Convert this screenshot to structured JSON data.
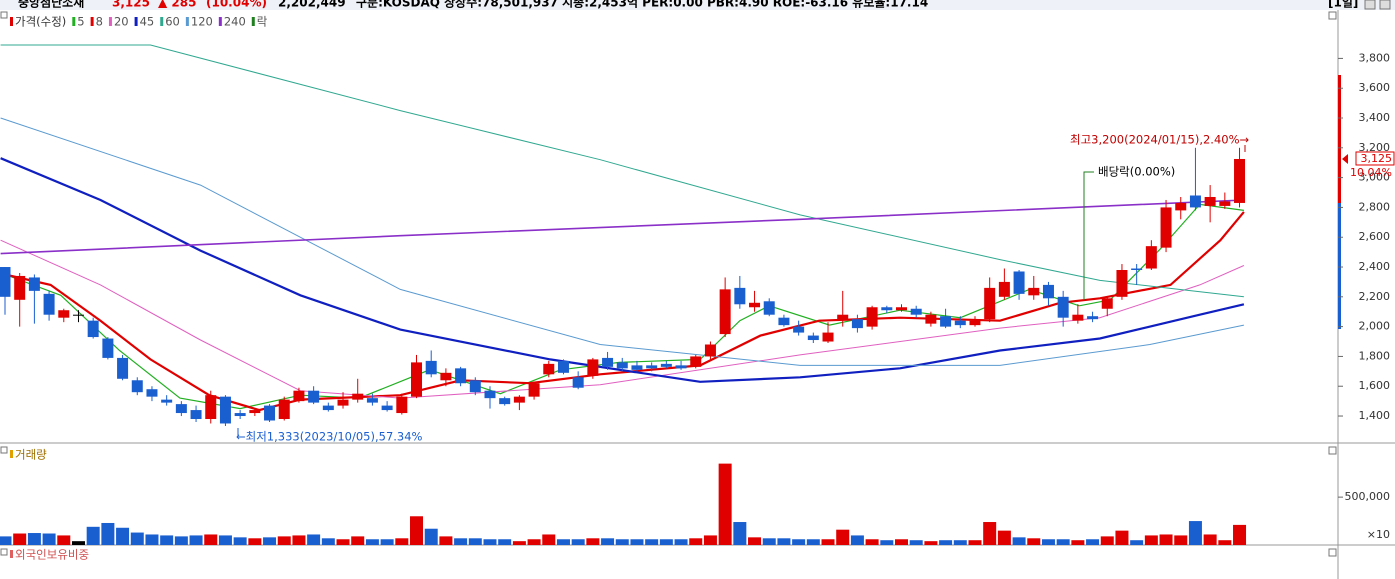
{
  "header": {
    "name": "중앙첨단소재",
    "price": "3,125",
    "change": "▲ 285",
    "rate": "(10.04%)",
    "volume": "2,202,449",
    "info": "구분:KOSDAQ 상장수:78,501,937 시총:2,453억 PER:0.00 PBR:4.90 ROE:-63.16 유보율:17.14",
    "period": "[1일]"
  },
  "legend": [
    {
      "name": "가격(수정)",
      "color": "#e00000"
    },
    {
      "name": "5",
      "color": "#22b022"
    },
    {
      "name": "8",
      "color": "#e00000"
    },
    {
      "name": "20",
      "color": "#e060c0"
    },
    {
      "name": "45",
      "color": "#1020c0"
    },
    {
      "name": "60",
      "color": "#30a890"
    },
    {
      "name": "120",
      "color": "#5a9ad0"
    },
    {
      "name": "240",
      "color": "#8a30c8"
    },
    {
      "name": "락",
      "color": "#208020"
    }
  ],
  "chart_data": [
    {
      "type": "candlestick",
      "up_color": "#e00000",
      "down_color": "#1a5fd0",
      "flat_color": "#000000",
      "xlim": [
        -0.34,
        90.7
      ],
      "ylim": [
        1219,
        4098
      ],
      "yticks": [
        {
          "value": 1400,
          "label": "1,400"
        },
        {
          "value": 1600,
          "label": "1,600"
        },
        {
          "value": 1800,
          "label": "1,800"
        },
        {
          "value": 2000,
          "label": "2,000"
        },
        {
          "value": 2200,
          "label": "2,200"
        },
        {
          "value": 2400,
          "label": "2,400"
        },
        {
          "value": 2600,
          "label": "2,600"
        },
        {
          "value": 2800,
          "label": "2,800"
        },
        {
          "value": 3000,
          "label": "3,000"
        },
        {
          "value": 3200,
          "label": "3,200"
        },
        {
          "value": 3400,
          "label": "3,400"
        },
        {
          "value": 3600,
          "label": "3,600"
        },
        {
          "value": 3800,
          "label": "3,800"
        }
      ],
      "open": [
        2400,
        2180,
        2330,
        2220,
        2060,
        2080,
        2040,
        1920,
        1790,
        1640,
        1580,
        1510,
        1480,
        1440,
        1380,
        1530,
        1420,
        1420,
        1470,
        1380,
        1500,
        1570,
        1470,
        1470,
        1510,
        1520,
        1470,
        1420,
        1530,
        1770,
        1640,
        1720,
        1640,
        1570,
        1520,
        1490,
        1530,
        1680,
        1770,
        1660,
        1670,
        1790,
        1760,
        1740,
        1740,
        1750,
        1740,
        1730,
        1800,
        1950,
        2260,
        2130,
        2170,
        2060,
        2000,
        1940,
        1900,
        2040,
        2050,
        2000,
        2130,
        2110,
        2120,
        2020,
        2070,
        2040,
        2010,
        2050,
        2200,
        2370,
        2210,
        2280,
        2200,
        2040,
        2070,
        2120,
        2200,
        2390,
        2390,
        2530,
        2780,
        2880,
        2810,
        2810,
        2830
      ],
      "high": [
        2400,
        2360,
        2350,
        2240,
        2120,
        2110,
        2060,
        1930,
        1810,
        1660,
        1600,
        1540,
        1500,
        1470,
        1570,
        1540,
        1440,
        1450,
        1480,
        1530,
        1590,
        1600,
        1490,
        1560,
        1650,
        1550,
        1500,
        1550,
        1810,
        1840,
        1720,
        1730,
        1660,
        1600,
        1530,
        1540,
        1630,
        1770,
        1780,
        1700,
        1790,
        1830,
        1790,
        1770,
        1760,
        1770,
        1770,
        1810,
        1900,
        2330,
        2340,
        2240,
        2190,
        2080,
        2040,
        1960,
        2030,
        2240,
        2080,
        2140,
        2140,
        2150,
        2140,
        2100,
        2120,
        2070,
        2070,
        2330,
        2390,
        2380,
        2340,
        2300,
        2240,
        2150,
        2100,
        2200,
        2420,
        2420,
        2580,
        2850,
        2870,
        3200,
        2950,
        2900,
        3200
      ],
      "low": [
        2080,
        2000,
        2020,
        2040,
        2030,
        2030,
        1920,
        1780,
        1640,
        1540,
        1500,
        1470,
        1400,
        1360,
        1350,
        1333,
        1380,
        1400,
        1360,
        1370,
        1490,
        1480,
        1430,
        1450,
        1490,
        1470,
        1430,
        1410,
        1520,
        1660,
        1600,
        1600,
        1540,
        1450,
        1470,
        1440,
        1510,
        1660,
        1680,
        1580,
        1650,
        1710,
        1700,
        1700,
        1700,
        1720,
        1710,
        1720,
        1780,
        1930,
        2120,
        2100,
        2070,
        2000,
        1940,
        1890,
        1890,
        2000,
        1960,
        1980,
        2090,
        2100,
        2060,
        2000,
        1990,
        1990,
        2000,
        2030,
        2180,
        2180,
        2180,
        2140,
        2000,
        2020,
        2030,
        2070,
        2180,
        2280,
        2380,
        2500,
        2720,
        2780,
        2700,
        2790,
        2800
      ],
      "close": [
        2200,
        2340,
        2240,
        2080,
        2110,
        2080,
        1930,
        1790,
        1650,
        1560,
        1530,
        1490,
        1420,
        1380,
        1540,
        1350,
        1400,
        1440,
        1370,
        1510,
        1570,
        1490,
        1440,
        1510,
        1550,
        1490,
        1440,
        1530,
        1760,
        1680,
        1690,
        1620,
        1560,
        1520,
        1480,
        1530,
        1620,
        1750,
        1690,
        1590,
        1780,
        1730,
        1720,
        1710,
        1720,
        1730,
        1720,
        1800,
        1880,
        2250,
        2150,
        2160,
        2080,
        2010,
        1960,
        1910,
        1960,
        2080,
        1990,
        2130,
        2110,
        2130,
        2080,
        2080,
        2000,
        2010,
        2040,
        2260,
        2300,
        2220,
        2260,
        2190,
        2060,
        2080,
        2050,
        2190,
        2380,
        2380,
        2540,
        2800,
        2830,
        2800,
        2870,
        2840,
        3125
      ],
      "series": [
        {
          "name": "5",
          "color": "#22b022",
          "width": 1.2,
          "x": [
            0,
            3.8,
            7.8,
            11.9,
            16.0,
            20.1,
            24.1,
            28.9,
            33.7,
            37.8,
            41.8,
            47.3,
            50.0,
            52.0,
            56.1,
            60.9,
            65.0,
            69.7,
            73.1,
            75.2,
            78.6,
            81.3,
            84.3
          ],
          "values": [
            2350,
            2210,
            1840,
            1520,
            1450,
            1540,
            1520,
            1710,
            1550,
            1710,
            1760,
            1780,
            2040,
            2140,
            2010,
            2110,
            2060,
            2250,
            2140,
            2180,
            2520,
            2820,
            2780
          ]
        },
        {
          "name": "8",
          "color": "#e00000",
          "width": 2.2,
          "x": [
            0,
            3.1,
            6.5,
            9.9,
            13.9,
            17.3,
            20.1,
            26.9,
            31.0,
            35.7,
            40.5,
            47.3,
            51.4,
            55.4,
            60.9,
            67.7,
            71.8,
            74.5,
            79.3,
            82.7,
            84.3
          ],
          "values": [
            2350,
            2280,
            2040,
            1780,
            1540,
            1440,
            1510,
            1540,
            1640,
            1620,
            1680,
            1740,
            1940,
            2040,
            2060,
            2040,
            2160,
            2190,
            2280,
            2580,
            2770
          ]
        },
        {
          "name": "20",
          "color": "#e060c0",
          "width": 1,
          "x": [
            -0.3,
            6.5,
            13.3,
            20.1,
            26.9,
            40.5,
            54.1,
            67.7,
            74.5,
            81.3,
            84.3
          ],
          "values": [
            2580,
            2280,
            1910,
            1570,
            1520,
            1610,
            1810,
            1990,
            2060,
            2280,
            2410
          ]
        },
        {
          "name": "45",
          "color": "#1020c0",
          "width": 2.2,
          "x": [
            -0.3,
            6.5,
            13.3,
            20.1,
            26.9,
            37.1,
            47.3,
            54.1,
            60.9,
            67.7,
            74.5,
            81.3,
            84.3
          ],
          "values": [
            3130,
            2850,
            2510,
            2210,
            1980,
            1780,
            1630,
            1660,
            1720,
            1840,
            1920,
            2080,
            2150
          ]
        },
        {
          "name": "60",
          "color": "#30a890",
          "width": 1,
          "x": [
            -0.3,
            9.9,
            26.9,
            40.5,
            54.1,
            67.7,
            74.5,
            84.3
          ],
          "values": [
            3890,
            3890,
            3450,
            3120,
            2750,
            2450,
            2310,
            2200
          ]
        },
        {
          "name": "120",
          "color": "#5a9ad0",
          "width": 1,
          "x": [
            -0.3,
            13.3,
            26.9,
            40.5,
            54.1,
            67.7,
            77.9,
            84.3
          ],
          "values": [
            3400,
            2950,
            2250,
            1880,
            1740,
            1740,
            1880,
            2010
          ]
        },
        {
          "name": "240",
          "color": "#8a30c8",
          "width": 1.6,
          "x": [
            -0.3,
            26.9,
            54.1,
            84.3
          ],
          "values": [
            2490,
            2610,
            2720,
            2850
          ]
        }
      ],
      "current": {
        "value": 3125,
        "label": "3,125",
        "rate": "10.04%"
      },
      "annotations": [
        {
          "text": "최고3,200(2024/01/15),2.40%→"
        },
        {
          "text": "배당락(0.00%)"
        },
        {
          "text": "←최저1,333(2023/10/05),57.34%"
        }
      ]
    },
    {
      "type": "bar",
      "title": "거래량",
      "unit": "×10",
      "xlim": [
        -0.34,
        90.7
      ],
      "ylim": [
        0,
        940000
      ],
      "yticks": [
        {
          "value": 500000,
          "label": "500,000"
        }
      ],
      "values": [
        90000,
        120000,
        125000,
        120000,
        100000,
        40000,
        190000,
        230000,
        180000,
        130000,
        110000,
        100000,
        90000,
        100000,
        110000,
        100000,
        80000,
        70000,
        80000,
        90000,
        100000,
        110000,
        70000,
        60000,
        90000,
        60000,
        60000,
        70000,
        300000,
        170000,
        90000,
        70000,
        70000,
        60000,
        60000,
        40000,
        60000,
        110000,
        60000,
        60000,
        70000,
        70000,
        60000,
        60000,
        60000,
        60000,
        60000,
        70000,
        100000,
        850000,
        240000,
        80000,
        70000,
        70000,
        60000,
        60000,
        60000,
        160000,
        100000,
        60000,
        50000,
        60000,
        50000,
        40000,
        50000,
        50000,
        50000,
        240000,
        150000,
        80000,
        70000,
        60000,
        60000,
        50000,
        60000,
        90000,
        150000,
        50000,
        100000,
        110000,
        100000,
        250000,
        110000,
        50000,
        210000
      ]
    },
    {
      "type": "panel",
      "title": "외국인보유비중"
    }
  ]
}
